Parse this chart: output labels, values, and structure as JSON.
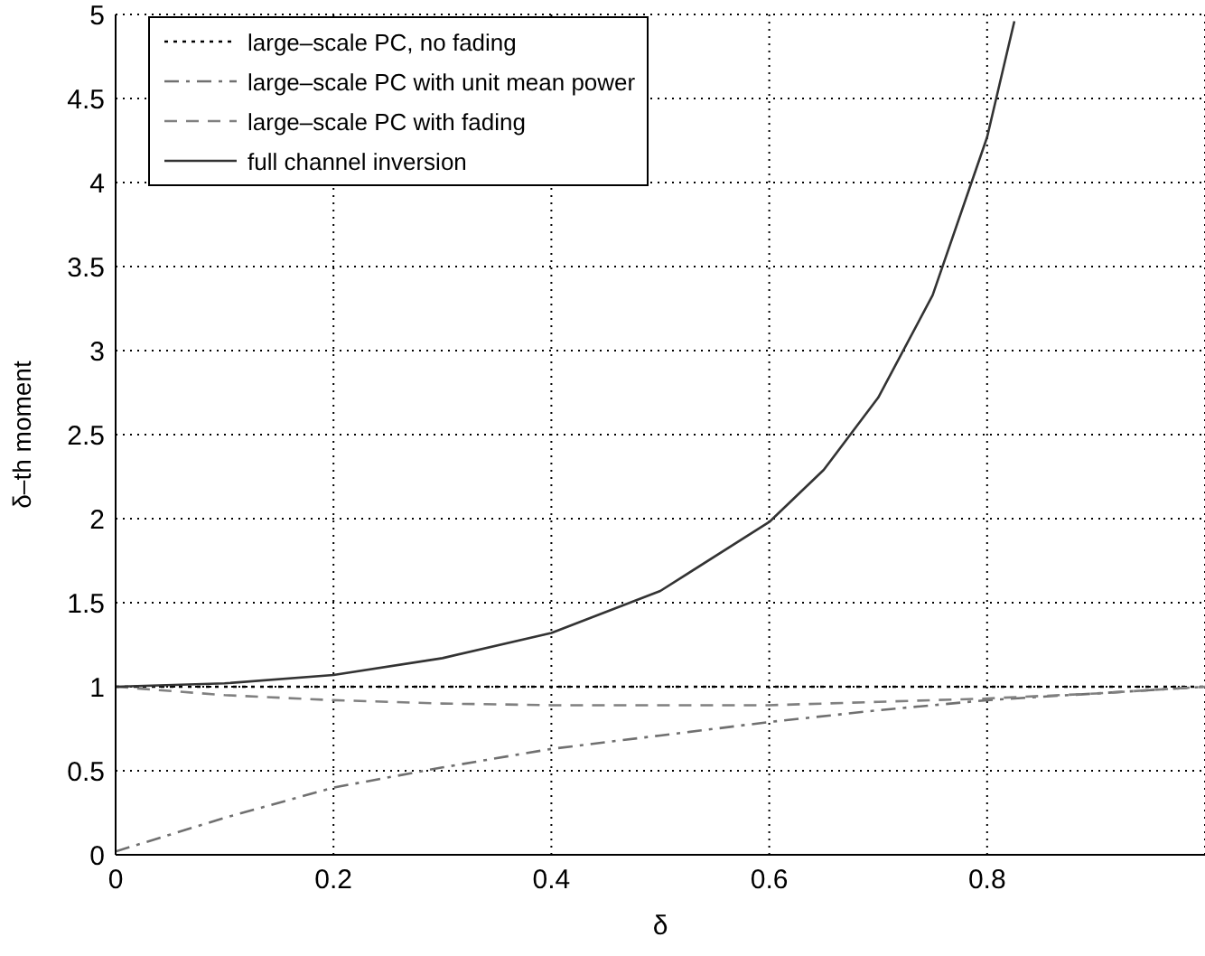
{
  "chart_data": {
    "type": "line",
    "xlabel": "δ",
    "ylabel": "δ–th moment",
    "xlim": [
      0,
      1
    ],
    "ylim": [
      0,
      5
    ],
    "xticks": [
      0,
      0.2,
      0.4,
      0.6,
      0.8
    ],
    "yticks": [
      0,
      0.5,
      1,
      1.5,
      2,
      2.5,
      3,
      3.5,
      4,
      4.5,
      5
    ],
    "grid": true,
    "legend": "top left",
    "marker": "none",
    "series": [
      {
        "name": "large–scale PC, no fading",
        "color": "#000000",
        "line_style": "dotted",
        "x": [
          0,
          1
        ],
        "values": [
          1,
          1
        ]
      },
      {
        "name": "large–scale PC with unit mean power",
        "color": "#707070",
        "line_style": "dashdot",
        "x": [
          0,
          0.1,
          0.2,
          0.3,
          0.4,
          0.5,
          0.6,
          0.7,
          0.8,
          0.9,
          1
        ],
        "values": [
          0.02,
          0.22,
          0.4,
          0.52,
          0.63,
          0.71,
          0.79,
          0.86,
          0.92,
          0.96,
          1
        ]
      },
      {
        "name": "large–scale PC with fading",
        "color": "#808080",
        "line_style": "dashed",
        "x": [
          0,
          0.1,
          0.2,
          0.3,
          0.4,
          0.5,
          0.6,
          0.7,
          0.8,
          0.9,
          1
        ],
        "values": [
          1,
          0.95,
          0.92,
          0.9,
          0.89,
          0.89,
          0.89,
          0.91,
          0.93,
          0.96,
          1
        ]
      },
      {
        "name": "full channel inversion",
        "color": "#333333",
        "line_style": "solid",
        "x": [
          0,
          0.1,
          0.2,
          0.3,
          0.4,
          0.5,
          0.6,
          0.65,
          0.7,
          0.75,
          0.8,
          0.825
        ],
        "values": [
          1,
          1.02,
          1.07,
          1.17,
          1.32,
          1.57,
          1.98,
          2.29,
          2.72,
          3.33,
          4.27,
          4.96
        ]
      }
    ]
  }
}
